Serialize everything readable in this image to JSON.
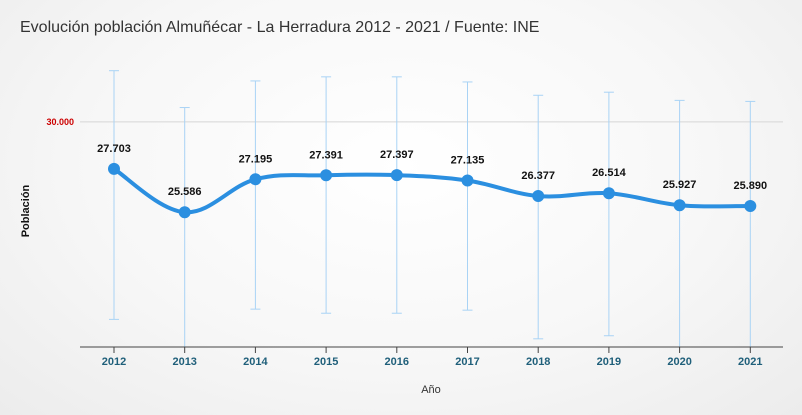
{
  "chart_data": {
    "type": "line",
    "title": "Evolución población Almuñécar - La Herradura 2012 - 2021 / Fuente: INE",
    "xlabel": "Año",
    "ylabel": "Población",
    "x": [
      "2012",
      "2013",
      "2014",
      "2015",
      "2016",
      "2017",
      "2018",
      "2019",
      "2020",
      "2021"
    ],
    "series": [
      {
        "values": [
          27703,
          25586,
          27195,
          27391,
          27397,
          27135,
          26377,
          26514,
          25927,
          25890
        ],
        "labels": [
          "27.703",
          "25.586",
          "27.195",
          "27.391",
          "27.397",
          "27.135",
          "26.377",
          "26.514",
          "25.927",
          "25.890"
        ],
        "color": "#2b8fe0"
      }
    ],
    "error_bars": [
      {
        "low": 20350,
        "high": 32500
      },
      {
        "low": 19000,
        "high": 30700
      },
      {
        "low": 20850,
        "high": 32000
      },
      {
        "low": 20650,
        "high": 32200
      },
      {
        "low": 20650,
        "high": 32200
      },
      {
        "low": 20800,
        "high": 31950
      },
      {
        "low": 19400,
        "high": 31300
      },
      {
        "low": 19550,
        "high": 31450
      },
      {
        "low": 19000,
        "high": 31050
      },
      {
        "low": 19000,
        "high": 31000
      }
    ],
    "error_bar_color": "#a9d3f5",
    "reference_line": {
      "value": 30000,
      "label": "30.000",
      "color": "#cc0000"
    },
    "ylim": [
      19000,
      34000
    ],
    "grid": false,
    "legend": "none"
  }
}
